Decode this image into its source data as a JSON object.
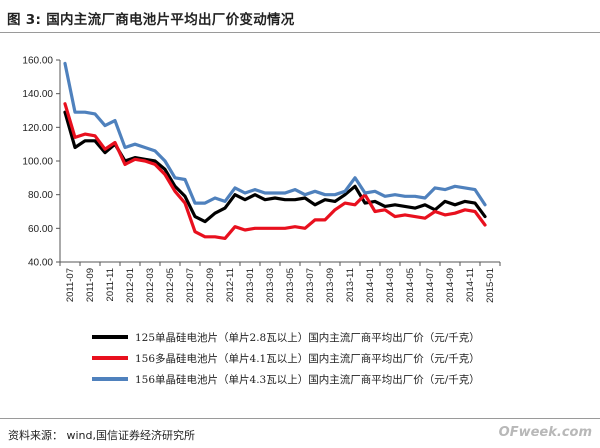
{
  "header": {
    "figure_label": "图  3:",
    "title": "国内主流厂商电池片平均出厂价变动情况"
  },
  "footer": {
    "source": "资料来源： wind,国信证券经济研究所",
    "watermark": "OFweek.com"
  },
  "chart_data": {
    "type": "line",
    "ylim": [
      40,
      160
    ],
    "yticks": [
      "40.00",
      "60.00",
      "80.00",
      "100.00",
      "120.00",
      "140.00",
      "160.00"
    ],
    "x_labels": [
      "2011-07",
      "2011-09",
      "2011-11",
      "2012-01",
      "2012-03",
      "2012-05",
      "2012-07",
      "2012-09",
      "2012-11",
      "2013-01",
      "2013-03",
      "2013-05",
      "2013-07",
      "2013-09",
      "2013-11",
      "2014-01",
      "2014-03",
      "2014-05",
      "2014-07",
      "2014-09",
      "2014-11",
      "2015-01"
    ],
    "series": [
      {
        "name": "125单晶硅电池片（单片2.8瓦以上）国内主流厂商平均出厂价（元/千克）",
        "color": "#000000",
        "values": [
          129,
          108,
          112,
          112,
          105,
          110,
          100,
          102,
          101,
          100,
          95,
          85,
          79,
          67,
          64,
          69,
          72,
          80,
          77,
          80,
          77,
          78,
          77,
          77,
          78,
          74,
          77,
          76,
          80,
          85,
          75,
          76,
          73,
          74,
          73,
          72,
          74,
          71,
          76,
          74,
          76,
          75,
          67
        ]
      },
      {
        "name": "156多晶硅电池片（单片4.1瓦以上）国内主流厂商平均出厂价（元/千克）",
        "color": "#e8101e",
        "values": [
          134,
          114,
          116,
          115,
          107,
          111,
          98,
          101,
          100,
          98,
          92,
          82,
          75,
          58,
          55,
          55,
          54,
          61,
          59,
          60,
          60,
          60,
          60,
          61,
          60,
          65,
          65,
          71,
          75,
          74,
          80,
          70,
          71,
          67,
          68,
          67,
          66,
          70,
          68,
          69,
          71,
          70,
          62
        ]
      },
      {
        "name": "156单晶硅电池片（单片4.3瓦以上）国内主流厂商平均出厂价（元/千克）",
        "color": "#4f81bd",
        "values": [
          158,
          129,
          129,
          128,
          121,
          124,
          108,
          110,
          108,
          106,
          100,
          90,
          89,
          75,
          75,
          78,
          76,
          84,
          81,
          83,
          81,
          81,
          81,
          83,
          80,
          82,
          80,
          80,
          82,
          90,
          81,
          82,
          79,
          80,
          79,
          79,
          78,
          84,
          83,
          85,
          84,
          83,
          74
        ]
      }
    ],
    "grid": false,
    "legend_position": "bottom"
  }
}
